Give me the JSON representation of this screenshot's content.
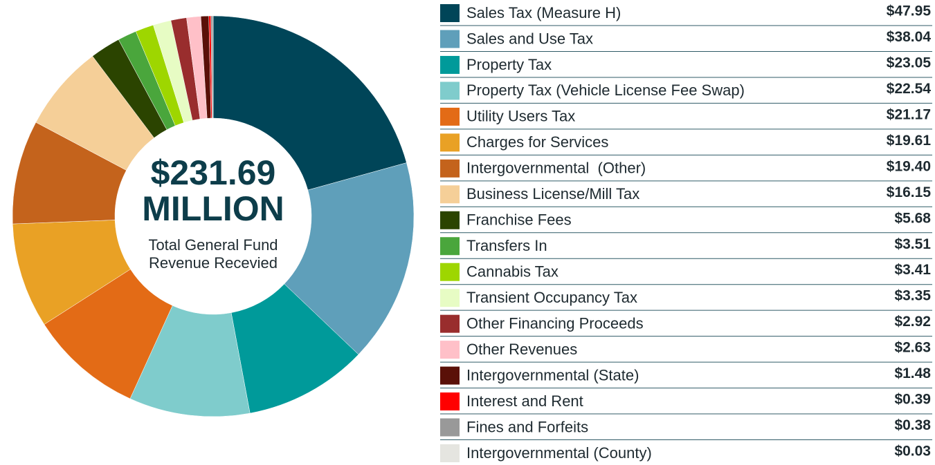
{
  "chart_data": {
    "type": "donut",
    "total_label": "$231.69",
    "total_unit": "MILLION",
    "center_text": [
      "Total General Fund",
      "Revenue Recevied"
    ],
    "categories": [
      "Sales Tax (Measure H)",
      "Sales and Use Tax",
      "Property Tax",
      "Property Tax (Vehicle License Fee Swap)",
      "Utility Users Tax",
      "Charges for Services",
      "Intergovernmental  (Other)",
      "Business License/Mill Tax",
      "Franchise Fees",
      "Transfers In",
      "Cannabis Tax",
      "Transient Occupancy Tax",
      "Other Financing Proceeds",
      "Other Revenues",
      "Intergovernmental (State)",
      "Interest and Rent",
      "Fines and Forfeits",
      "Intergovernmental (County)"
    ],
    "values": [
      47.95,
      38.04,
      23.05,
      22.54,
      21.17,
      19.61,
      19.4,
      16.15,
      5.68,
      3.51,
      3.41,
      3.35,
      2.92,
      2.63,
      1.48,
      0.39,
      0.38,
      0.03
    ],
    "value_labels": [
      "$47.95",
      "$38.04",
      "$23.05",
      "$22.54",
      "$21.17",
      "$19.61",
      "$19.40",
      "$16.15",
      "$5.68",
      "$3.51",
      "$3.41",
      "$3.35",
      "$2.92",
      "$2.63",
      "$1.48",
      "$0.39",
      "$0.38",
      "$0.03"
    ],
    "colors": [
      "#004558",
      "#5f9fba",
      "#009a9a",
      "#7fcccc",
      "#e36b16",
      "#e9a125",
      "#c4631c",
      "#f5cf98",
      "#2b4400",
      "#4aa63c",
      "#9ed600",
      "#e7fcc4",
      "#992d2d",
      "#ffc0c8",
      "#5a1008",
      "#ff0000",
      "#999999",
      "#e5e5e0"
    ]
  }
}
